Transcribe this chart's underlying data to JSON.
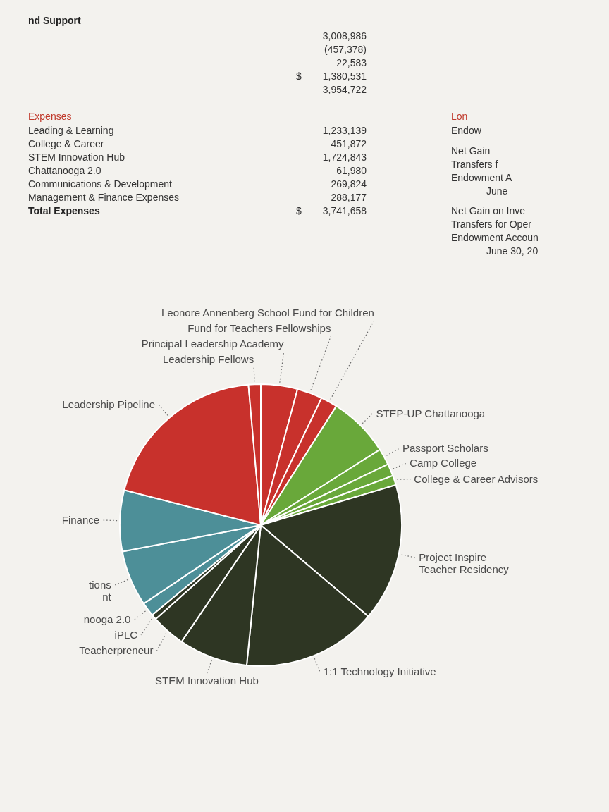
{
  "chart_data": {
    "type": "pie",
    "categories": [
      "Principal Leadership Academy",
      "Fund for Teachers Fellowships",
      "Leonore Annenberg School Fund for Children",
      "STEP-UP Chattanooga",
      "Passport Scholars",
      "Camp College",
      "College & Career Advisors",
      "Project Inspire\nTeacher Residency",
      "1:1 Technology Initiative",
      "STEM Innovation Hub",
      "Teacherpreneur",
      "iPLC",
      "nooga 2.0",
      "tions\nnt",
      "Finance",
      "Leadership Pipeline",
      "Leadership Fellows"
    ],
    "values": [
      4.2,
      2.9,
      1.9,
      7.0,
      1.9,
      1.4,
      1.1,
      15.8,
      15.4,
      7.9,
      3.9,
      0.6,
      1.6,
      6.4,
      7.0,
      19.6,
      1.4
    ],
    "colors": [
      "#c8312c",
      "#c8312c",
      "#c8312c",
      "#69a83a",
      "#69a83a",
      "#69a83a",
      "#69a83a",
      "#2e3623",
      "#2e3623",
      "#2e3623",
      "#2e3623",
      "#2e3623",
      "#4d8f98",
      "#4d8f98",
      "#4d8f98",
      "#c8312c",
      "#c8312c"
    ],
    "annotations": [
      "nd Support",
      "3,008,986",
      "(457,378)",
      "22,583",
      "$",
      "1,380,531",
      "3,954,722",
      "Expenses",
      "Leading & Learning",
      "College & Career",
      "STEM Innovation Hub",
      "Chattanooga 2.0",
      "Communications & Development",
      "Management & Finance Expenses",
      "Total Expenses",
      "1,233,139",
      "451,872",
      "1,724,843",
      "61,980",
      "269,824",
      "288,177",
      "$",
      "3,741,658",
      "Lon",
      "Endow",
      "Net Gain",
      "Transfers f",
      "Endowment A",
      "June",
      "Net Gain on Inve",
      "Transfers for Oper",
      "Endowment Accoun",
      "June 30, 20"
    ]
  }
}
